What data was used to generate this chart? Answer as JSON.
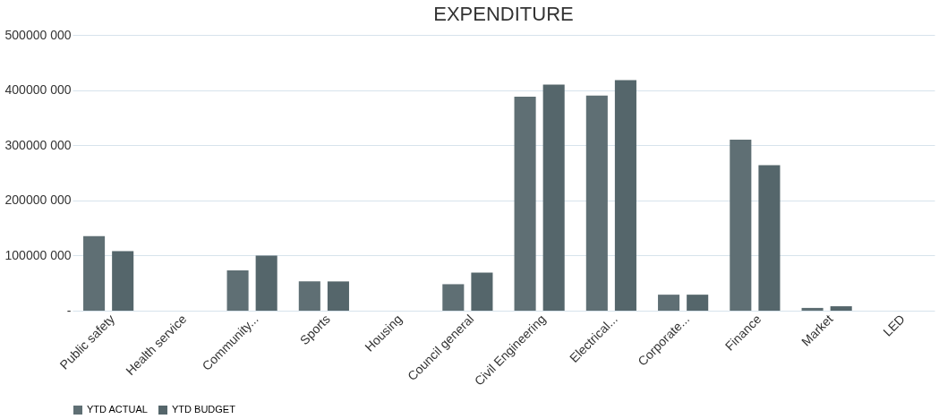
{
  "chart_data": {
    "type": "bar",
    "title": "EXPENDITURE",
    "categories": [
      "Public safety",
      "Health service",
      "Community...",
      "Sports",
      "Housing",
      "Council general",
      "Civil Engineering",
      "Electrical...",
      "Corporate...",
      "Finance",
      "Market",
      "LED"
    ],
    "series": [
      {
        "name": "YTD ACTUAL",
        "color": "#5f6f74",
        "values": [
          135000000,
          0,
          73000000,
          53000000,
          0,
          48000000,
          388000000,
          390000000,
          29000000,
          310000000,
          5000000,
          0
        ]
      },
      {
        "name": "YTD BUDGET",
        "color": "#55666b",
        "values": [
          108000000,
          0,
          100000000,
          53000000,
          0,
          69000000,
          410000000,
          418000000,
          29000000,
          264000000,
          8000000,
          0
        ]
      }
    ],
    "ylim": [
      0,
      500000000
    ],
    "yticks": [
      {
        "value": 0,
        "label": "-"
      },
      {
        "value": 100000000,
        "label": "100000 000"
      },
      {
        "value": 200000000,
        "label": "200000 000"
      },
      {
        "value": 300000000,
        "label": "300000 000"
      },
      {
        "value": 400000000,
        "label": "400000 000"
      },
      {
        "value": 500000000,
        "label": "500000 000"
      }
    ],
    "grid": "y",
    "legend": "bottom"
  }
}
